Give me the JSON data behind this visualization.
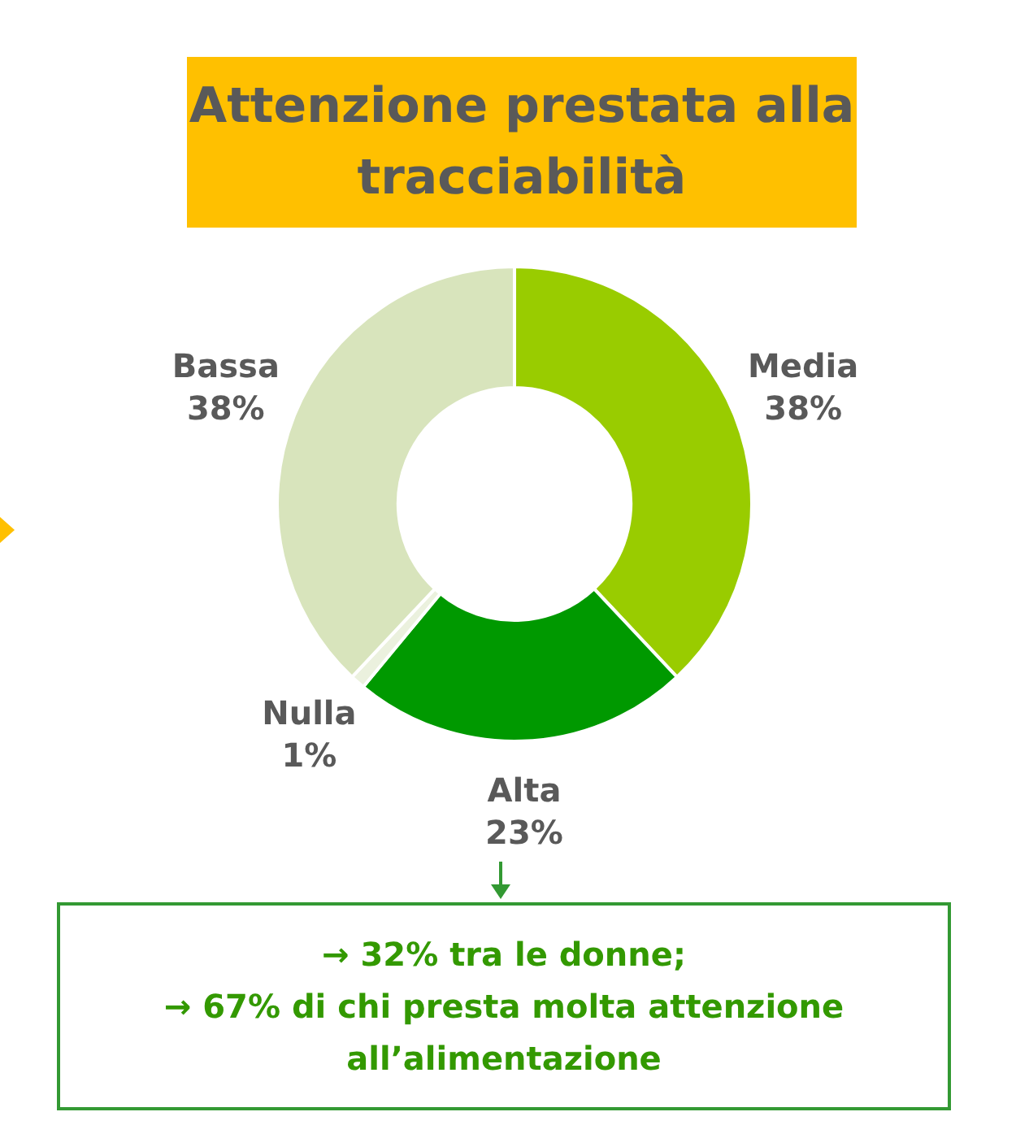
{
  "chart_data": {
    "type": "donut",
    "title": "Attenzione prestata alla tracciabilità",
    "categories": [
      "Media",
      "Alta",
      "Nulla",
      "Bassa"
    ],
    "values": [
      38,
      23,
      1,
      38
    ],
    "value_labels": [
      "38%",
      "23%",
      "1%",
      "38%"
    ],
    "colors": [
      "#99cc00",
      "#009900",
      "#ebf1de",
      "#d8e4bc"
    ],
    "legend": false,
    "annotations": [
      "→  32% tra le donne;",
      "→  67% di chi presta molta attenzione all’alimentazione"
    ]
  }
}
